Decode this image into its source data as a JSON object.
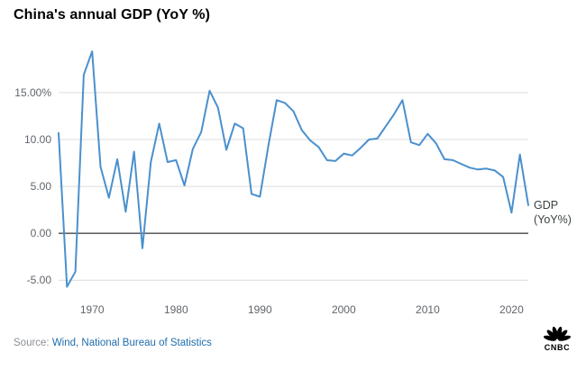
{
  "header": {
    "title": "China's annual GDP (YoY %)"
  },
  "chart_data": {
    "type": "line",
    "title": "China's annual GDP (YoY %)",
    "xlabel": "",
    "ylabel": "",
    "xlim": [
      1966,
      2022
    ],
    "ylim": [
      -6.9,
      19.6
    ],
    "grid": true,
    "line_color": "#4a90cd",
    "grid_color": "#dcdcdc",
    "zero_line_color": "#000000",
    "tick_color": "#60656b",
    "x": [
      1966,
      1967,
      1968,
      1969,
      1970,
      1971,
      1972,
      1973,
      1974,
      1975,
      1976,
      1977,
      1978,
      1979,
      1980,
      1981,
      1982,
      1983,
      1984,
      1985,
      1986,
      1987,
      1988,
      1989,
      1990,
      1991,
      1992,
      1993,
      1994,
      1995,
      1996,
      1997,
      1998,
      1999,
      2000,
      2001,
      2002,
      2003,
      2004,
      2005,
      2006,
      2007,
      2008,
      2009,
      2010,
      2011,
      2012,
      2013,
      2014,
      2015,
      2016,
      2017,
      2018,
      2019,
      2020,
      2021,
      2022
    ],
    "values": [
      10.7,
      -5.7,
      -4.1,
      16.9,
      19.4,
      7.1,
      3.8,
      7.9,
      2.3,
      8.7,
      -1.6,
      7.6,
      11.7,
      7.6,
      7.8,
      5.1,
      9.0,
      10.8,
      15.2,
      13.4,
      8.9,
      11.7,
      11.2,
      4.2,
      3.9,
      9.3,
      14.2,
      13.9,
      13.0,
      11.0,
      9.9,
      9.2,
      7.8,
      7.7,
      8.5,
      8.3,
      9.1,
      10.0,
      10.1,
      11.4,
      12.7,
      14.2,
      9.7,
      9.4,
      10.6,
      9.6,
      7.9,
      7.8,
      7.4,
      7.0,
      6.8,
      6.9,
      6.7,
      6.0,
      2.2,
      8.4,
      3.0
    ],
    "yticks": [
      {
        "value": 15,
        "label": "15.00%"
      },
      {
        "value": 10,
        "label": "10.00"
      },
      {
        "value": 5,
        "label": "5.00"
      },
      {
        "value": 0,
        "label": "0.00"
      },
      {
        "value": -5,
        "label": "-5.00"
      }
    ],
    "xticks": [
      {
        "value": 1970,
        "label": "1970"
      },
      {
        "value": 1980,
        "label": "1980"
      },
      {
        "value": 1990,
        "label": "1990"
      },
      {
        "value": 2000,
        "label": "2000"
      },
      {
        "value": 2010,
        "label": "2010"
      },
      {
        "value": 2020,
        "label": "2020"
      }
    ],
    "legend_position": "right-of-line-end"
  },
  "annotation": {
    "line1": "GDP",
    "line2": "(YoY%)"
  },
  "footer": {
    "source_prefix": "Source: ",
    "source_link": "Wind, National Bureau of Statistics",
    "logo_text": "CNBC"
  }
}
